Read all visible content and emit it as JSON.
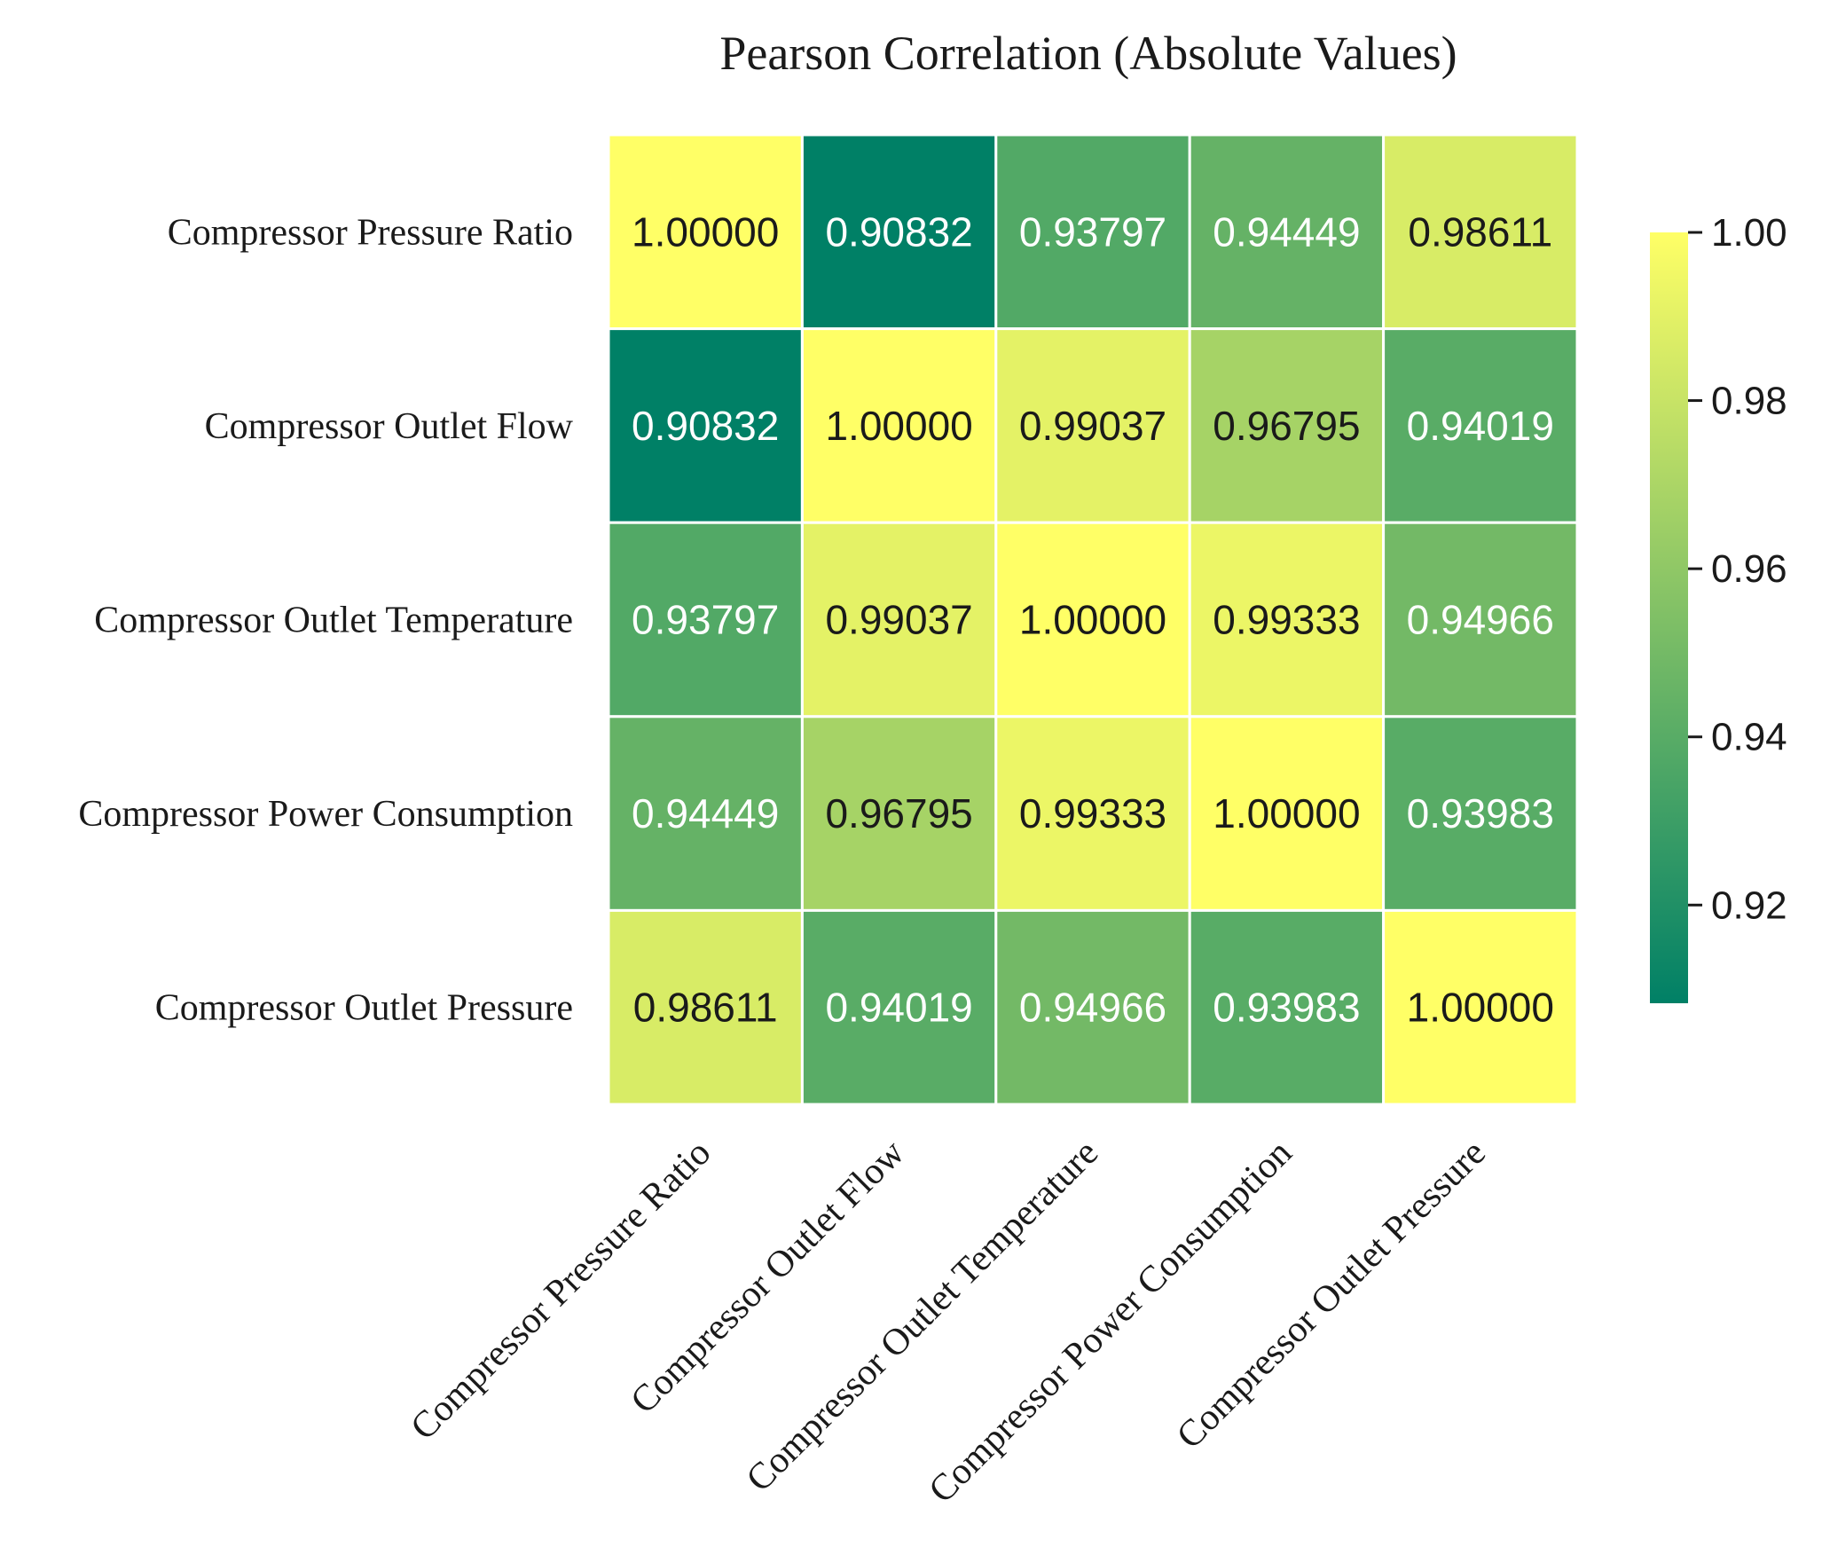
{
  "chart_data": {
    "type": "heatmap",
    "title": "Pearson Correlation (Absolute Values)",
    "row_labels": [
      "Compressor Pressure Ratio",
      "Compressor Outlet Flow",
      "Compressor Outlet Temperature",
      "Compressor Power Consumption",
      "Compressor Outlet Pressure"
    ],
    "col_labels": [
      "Compressor Pressure Ratio",
      "Compressor Outlet Flow",
      "Compressor Outlet Temperature",
      "Compressor Power Consumption",
      "Compressor Outlet Pressure"
    ],
    "values": [
      [
        1.0,
        0.90832,
        0.93797,
        0.94449,
        0.98611
      ],
      [
        0.90832,
        1.0,
        0.99037,
        0.96795,
        0.94019
      ],
      [
        0.93797,
        0.99037,
        1.0,
        0.99333,
        0.94966
      ],
      [
        0.94449,
        0.96795,
        0.99333,
        1.0,
        0.93983
      ],
      [
        0.98611,
        0.94019,
        0.94966,
        0.93983,
        1.0
      ]
    ],
    "cell_labels": [
      [
        "1.00000",
        "0.90832",
        "0.93797",
        "0.94449",
        "0.98611"
      ],
      [
        "0.90832",
        "1.00000",
        "0.99037",
        "0.96795",
        "0.94019"
      ],
      [
        "0.93797",
        "0.99037",
        "1.00000",
        "0.99333",
        "0.94966"
      ],
      [
        "0.94449",
        "0.96795",
        "0.99333",
        "1.00000",
        "0.93983"
      ],
      [
        "0.98611",
        "0.94019",
        "0.94966",
        "0.93983",
        "1.00000"
      ]
    ],
    "colormap": "summer",
    "colormap_low": "#008066",
    "colormap_high": "#ffff66",
    "vmin": 0.90832,
    "vmax": 1.0,
    "colorbar": {
      "ticks": [
        0.92,
        0.94,
        0.96,
        0.98,
        1.0
      ],
      "tick_labels": [
        "0.92",
        "0.94",
        "0.96",
        "0.98",
        "1.00"
      ],
      "placement": "right"
    },
    "grid_line_color": "#ffffff",
    "text_dark": "#1a1a1a",
    "text_light": "#ffffff"
  }
}
